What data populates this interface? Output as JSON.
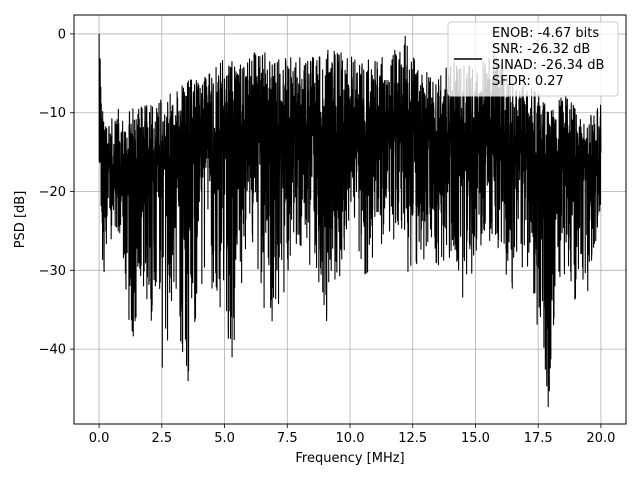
{
  "chart_data": {
    "type": "line",
    "xlabel": "Frequency [MHz]",
    "ylabel": "PSD [dB]",
    "xlim": [
      -1.0,
      21.0
    ],
    "ylim": [
      -49.5,
      2.4
    ],
    "xticks": [
      0.0,
      2.5,
      5.0,
      7.5,
      10.0,
      12.5,
      15.0,
      17.5,
      20.0
    ],
    "xtick_labels": [
      "0.0",
      "2.5",
      "5.0",
      "7.5",
      "10.0",
      "12.5",
      "15.0",
      "17.5",
      "20.0"
    ],
    "yticks": [
      0,
      -10,
      -20,
      -30,
      -40
    ],
    "ytick_labels": [
      "0",
      "−10",
      "−20",
      "−30",
      "−40"
    ],
    "grid": true,
    "legend_placement": "top-right",
    "legend_lines": [
      "ENOB: -4.67 bits",
      "SNR: -26.32 dB",
      "SINAD: -26.34 dB",
      "SFDR: 0.27"
    ],
    "series_color": "#000000",
    "series": [
      {
        "x_start": 0.0,
        "x_end": 20.0,
        "peaks": [
          [
            0.0,
            0.0
          ],
          [
            0.05,
            -3.0
          ],
          [
            0.15,
            -9.5
          ],
          [
            0.3,
            -11.5
          ],
          [
            0.5,
            -10.5
          ],
          [
            0.9,
            -9.0
          ],
          [
            1.5,
            -9.5
          ],
          [
            2.3,
            -8.5
          ],
          [
            2.9,
            -7.5
          ],
          [
            3.5,
            -6.0
          ],
          [
            4.3,
            -5.0
          ],
          [
            4.9,
            -2.8
          ],
          [
            5.6,
            -3.5
          ],
          [
            6.3,
            -2.0
          ],
          [
            7.0,
            -2.5
          ],
          [
            7.8,
            -3.0
          ],
          [
            8.8,
            -2.0
          ],
          [
            9.5,
            -1.5
          ],
          [
            10.3,
            -3.5
          ],
          [
            11.0,
            -2.5
          ],
          [
            11.5,
            -3.0
          ],
          [
            12.2,
            -0.3
          ],
          [
            12.8,
            -4.0
          ],
          [
            13.5,
            -5.0
          ],
          [
            14.3,
            -3.0
          ],
          [
            15.0,
            -4.5
          ],
          [
            15.8,
            -1.5
          ],
          [
            16.5,
            -5.5
          ],
          [
            17.3,
            -7.0
          ],
          [
            18.1,
            -9.0
          ],
          [
            18.6,
            -7.5
          ],
          [
            19.3,
            -11.0
          ],
          [
            20.0,
            -9.0
          ]
        ],
        "troughs": [
          [
            0.05,
            -16.5
          ],
          [
            0.15,
            -35.2
          ],
          [
            0.3,
            -28.5
          ],
          [
            0.6,
            -27.0
          ],
          [
            1.0,
            -30.0
          ],
          [
            1.3,
            -41.5
          ],
          [
            1.8,
            -32.0
          ],
          [
            2.3,
            -42.0
          ],
          [
            2.6,
            -43.0
          ],
          [
            3.0,
            -35.0
          ],
          [
            3.55,
            -44.0
          ],
          [
            4.2,
            -30.0
          ],
          [
            5.3,
            -41.0
          ],
          [
            5.9,
            -27.0
          ],
          [
            6.9,
            -39.7
          ],
          [
            7.8,
            -28.0
          ],
          [
            8.5,
            -30.0
          ],
          [
            9.1,
            -37.5
          ],
          [
            10.0,
            -25.0
          ],
          [
            10.6,
            -31.0
          ],
          [
            11.6,
            -25.0
          ],
          [
            12.4,
            -31.0
          ],
          [
            13.4,
            -29.0
          ],
          [
            14.4,
            -34.6
          ],
          [
            15.4,
            -25.5
          ],
          [
            16.3,
            -33.5
          ],
          [
            17.0,
            -29.0
          ],
          [
            17.9,
            -47.3
          ],
          [
            18.4,
            -30.0
          ],
          [
            19.3,
            -36.7
          ],
          [
            20.0,
            -22.0
          ]
        ],
        "median": [
          [
            0.0,
            -16.0
          ],
          [
            1.0,
            -17.0
          ],
          [
            2.5,
            -16.0
          ],
          [
            4.0,
            -14.0
          ],
          [
            6.0,
            -13.0
          ],
          [
            9.0,
            -13.0
          ],
          [
            12.0,
            -13.0
          ],
          [
            15.0,
            -13.5
          ],
          [
            18.0,
            -15.5
          ],
          [
            20.0,
            -16.0
          ]
        ],
        "notable_points": [
          [
            0.0,
            0.0
          ],
          [
            12.2,
            -0.3
          ],
          [
            17.9,
            -47.3
          ],
          [
            3.55,
            -44.0
          ],
          [
            5.3,
            -41.0
          ]
        ]
      }
    ]
  }
}
